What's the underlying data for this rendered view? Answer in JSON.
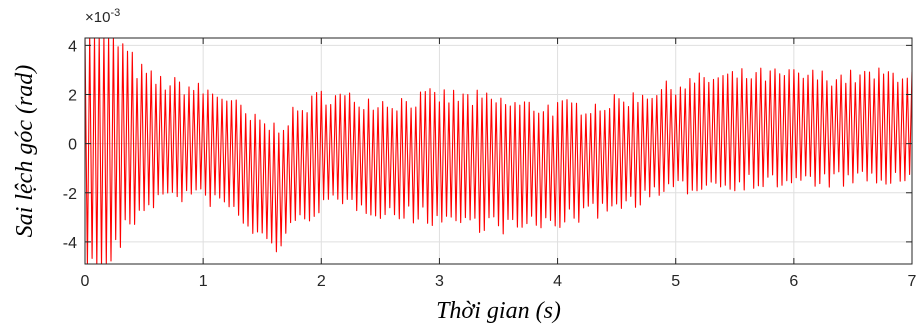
{
  "chart_data": {
    "type": "line",
    "title": "",
    "xlabel": "Thời gian (s)",
    "ylabel": "Sai lệch góc (rad)",
    "xlim": [
      0,
      7
    ],
    "ylim": [
      -4.9,
      4.3
    ],
    "y_scale_factor_label": {
      "base": "×10",
      "exponent": "-3"
    },
    "x_ticks": [
      "0",
      "1",
      "2",
      "3",
      "4",
      "5",
      "6",
      "7"
    ],
    "y_ticks": [
      "4",
      "2",
      "0",
      "-2",
      "-4"
    ],
    "y_tick_values": [
      4,
      2,
      0,
      -2,
      -4
    ],
    "x_tick_values": [
      0,
      1,
      2,
      3,
      4,
      5,
      6,
      7
    ],
    "grid": true,
    "line_color": "#ff0000",
    "frequency_hz": 25,
    "envelope": {
      "note_units": "y in ×10^-3 rad",
      "t": [
        0.0,
        0.12,
        0.2,
        0.3,
        0.45,
        0.6,
        0.9,
        1.2,
        1.4,
        1.6,
        1.8,
        2.0,
        2.3,
        2.6,
        3.0,
        3.3,
        3.7,
        4.0,
        4.4,
        4.8,
        5.2,
        5.6,
        6.0,
        6.4,
        7.0
      ],
      "upper": [
        6.0,
        6.0,
        5.5,
        4.6,
        3.4,
        2.9,
        2.6,
        2.2,
        1.3,
        1.0,
        1.6,
        2.3,
        2.1,
        2.0,
        2.3,
        2.2,
        1.9,
        1.8,
        1.9,
        2.4,
        2.9,
        3.1,
        3.1,
        3.0,
        3.2
      ],
      "lower": [
        -6.0,
        -6.0,
        -5.5,
        -4.6,
        -3.2,
        -2.6,
        -2.4,
        -2.8,
        -3.8,
        -4.6,
        -3.6,
        -2.8,
        -2.8,
        -3.2,
        -3.4,
        -3.6,
        -3.8,
        -3.5,
        -3.0,
        -2.4,
        -2.0,
        -1.9,
        -1.9,
        -1.8,
        -1.8
      ]
    }
  }
}
